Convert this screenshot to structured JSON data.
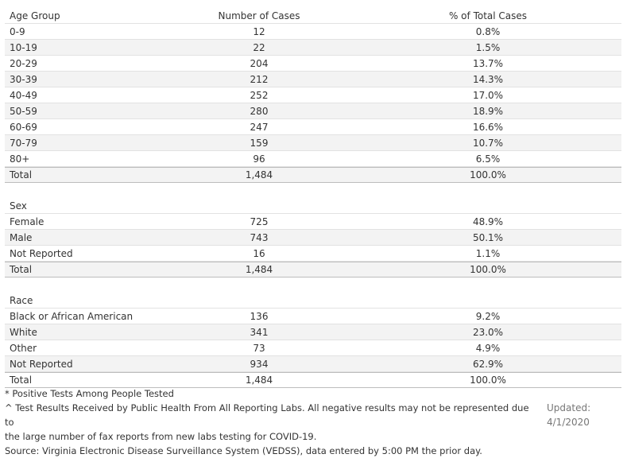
{
  "headers": {
    "group": "Age Group",
    "cases": "Number of Cases",
    "pct": "% of Total Cases"
  },
  "age": [
    {
      "label": "0-9",
      "cases": "12",
      "pct": "0.8%"
    },
    {
      "label": "10-19",
      "cases": "22",
      "pct": "1.5%"
    },
    {
      "label": "20-29",
      "cases": "204",
      "pct": "13.7%"
    },
    {
      "label": "30-39",
      "cases": "212",
      "pct": "14.3%"
    },
    {
      "label": "40-49",
      "cases": "252",
      "pct": "17.0%"
    },
    {
      "label": "50-59",
      "cases": "280",
      "pct": "18.9%"
    },
    {
      "label": "60-69",
      "cases": "247",
      "pct": "16.6%"
    },
    {
      "label": "70-79",
      "cases": "159",
      "pct": "10.7%"
    },
    {
      "label": "80+",
      "cases": "96",
      "pct": "6.5%"
    },
    {
      "label": "Total",
      "cases": "1,484",
      "pct": "100.0%"
    }
  ],
  "sex": {
    "heading": "Sex",
    "rows": [
      {
        "label": "Female",
        "cases": "725",
        "pct": "48.9%"
      },
      {
        "label": "Male",
        "cases": "743",
        "pct": "50.1%"
      },
      {
        "label": "Not Reported",
        "cases": "16",
        "pct": "1.1%"
      },
      {
        "label": "Total",
        "cases": "1,484",
        "pct": "100.0%"
      }
    ]
  },
  "race": {
    "heading": "Race",
    "rows": [
      {
        "label": "Black or African American",
        "cases": "136",
        "pct": "9.2%"
      },
      {
        "label": "White",
        "cases": "341",
        "pct": "23.0%"
      },
      {
        "label": "Other",
        "cases": "73",
        "pct": "4.9%"
      },
      {
        "label": "Not Reported",
        "cases": "934",
        "pct": "62.9%"
      },
      {
        "label": "Total",
        "cases": "1,484",
        "pct": "100.0%"
      }
    ]
  },
  "footnotes": {
    "line1": "* Positive Tests Among People Tested",
    "line2": "^ Test Results Received by Public Health From All Reporting Labs.  All negative results may not be represented due to",
    "line3": "the large number of fax reports from new labs testing for COVID-19.",
    "line4": "Source: Virginia Electronic Disease Surveillance System (VEDSS), data entered by 5:00 PM the prior day."
  },
  "updated": {
    "label": "Updated:",
    "date": "4/1/2020"
  }
}
